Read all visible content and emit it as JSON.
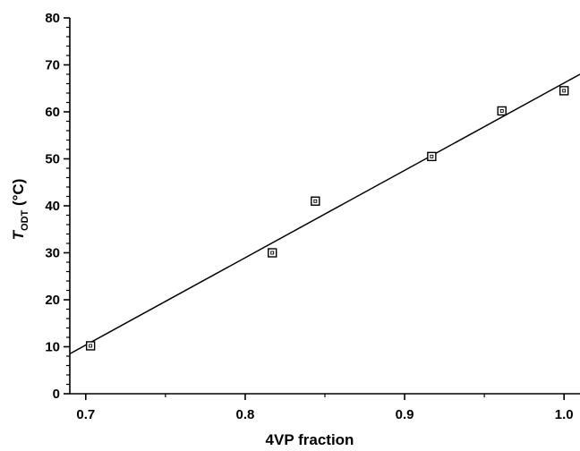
{
  "chart_data": {
    "type": "scatter",
    "title": "",
    "xlabel": "4VP fraction",
    "ylabel": {
      "main": "T",
      "subscript": "ODT",
      "unit": " (°C)"
    },
    "xlim": [
      0.69,
      1.01
    ],
    "ylim": [
      0,
      80
    ],
    "x_ticks": [
      {
        "value": 0.7,
        "label": "0.7"
      },
      {
        "value": 0.8,
        "label": "0.8"
      },
      {
        "value": 0.9,
        "label": "0.9"
      },
      {
        "value": 1.0,
        "label": "1.0"
      }
    ],
    "y_ticks": [
      {
        "value": 0,
        "label": "0"
      },
      {
        "value": 10,
        "label": "10"
      },
      {
        "value": 20,
        "label": "20"
      },
      {
        "value": 30,
        "label": "30"
      },
      {
        "value": 40,
        "label": "40"
      },
      {
        "value": 50,
        "label": "50"
      },
      {
        "value": 60,
        "label": "60"
      },
      {
        "value": 70,
        "label": "70"
      },
      {
        "value": 80,
        "label": "80"
      }
    ],
    "grid": false,
    "legend": "none",
    "series": [
      {
        "marker": "open-square",
        "x": [
          0.703,
          0.817,
          0.844,
          0.917,
          0.961,
          1.0
        ],
        "y": [
          10.2,
          30.0,
          41.0,
          50.5,
          60.2,
          64.5
        ]
      }
    ],
    "fit_line": {
      "x": [
        0.69,
        1.01
      ],
      "y": [
        8.5,
        68.0
      ]
    }
  }
}
